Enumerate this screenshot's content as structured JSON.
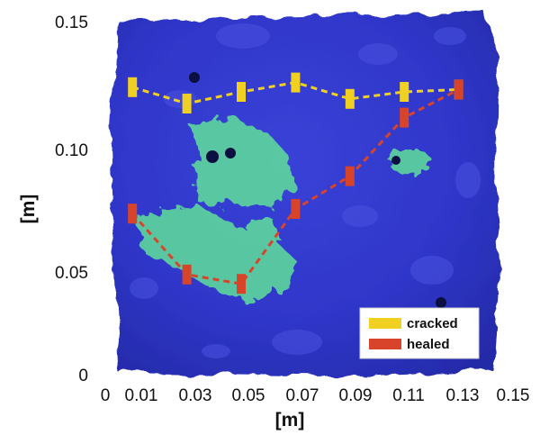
{
  "chart_data": {
    "type": "line",
    "xlabel": "[m]",
    "ylabel": "[m]",
    "xlim": [
      0,
      0.15
    ],
    "ylim": [
      0,
      0.15
    ],
    "x_ticks": [
      "0",
      "0.01",
      "0.03",
      "0.05",
      "0.07",
      "0.09",
      "0.11",
      "0.13",
      "0.15"
    ],
    "y_ticks": [
      "0",
      "0.05",
      "0.10",
      "0.15"
    ],
    "grid": false,
    "legend_position": "bottom-right",
    "background": "fluorescent UV photograph of a concrete specimen",
    "series": [
      {
        "name": "cracked",
        "color": "#f0d020",
        "x": [
          0.01,
          0.03,
          0.05,
          0.07,
          0.09,
          0.11,
          0.13
        ],
        "y": [
          0.122,
          0.115,
          0.12,
          0.124,
          0.117,
          0.12,
          0.121
        ]
      },
      {
        "name": "healed",
        "color": "#d8442a",
        "x": [
          0.01,
          0.03,
          0.05,
          0.07,
          0.09,
          0.11,
          0.13
        ],
        "y": [
          0.068,
          0.042,
          0.038,
          0.07,
          0.084,
          0.109,
          0.121
        ]
      }
    ]
  }
}
